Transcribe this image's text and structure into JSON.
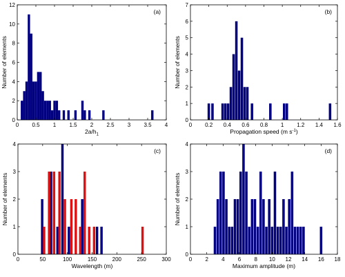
{
  "colors": {
    "bar_primary": "#000080",
    "bar_secondary": "#dd1111",
    "axis": "#000000"
  },
  "chart_data": [
    {
      "type": "bar",
      "panel_label": "(a)",
      "xlabel": "2a/h",
      "xlabel_sub": "1",
      "ylabel": "Number of elements",
      "xlim": [
        0,
        4
      ],
      "ylim": [
        0,
        12
      ],
      "xticks": [
        0,
        0.5,
        1,
        1.5,
        2,
        2.5,
        3,
        3.5,
        4
      ],
      "xtick_labels": [
        "0",
        "0.5",
        "1",
        "1.5",
        "2",
        "2.5",
        "3",
        "3.5",
        "4"
      ],
      "yticks": [
        0,
        2,
        4,
        6,
        8,
        10,
        12
      ],
      "ytick_labels": [
        "0",
        "2",
        "4",
        "6",
        "8",
        "10",
        "12"
      ],
      "bin_width": 0.0625,
      "series": [
        {
          "color": "#000080",
          "x": [
            0.125,
            0.1875,
            0.25,
            0.3125,
            0.375,
            0.4375,
            0.5,
            0.5625,
            0.625,
            0.6875,
            0.75,
            0.8125,
            0.875,
            0.9375,
            1.0,
            1.0625,
            1.125,
            1.25,
            1.375,
            1.5625,
            1.75,
            1.8125,
            1.9375,
            2.3125,
            3.625
          ],
          "values": [
            2,
            3,
            4,
            11,
            9,
            4,
            4,
            5,
            5,
            3,
            2,
            2,
            2,
            1,
            2,
            2,
            1,
            1,
            1,
            1,
            2,
            1,
            1,
            1,
            1
          ]
        }
      ]
    },
    {
      "type": "bar",
      "panel_label": "(b)",
      "xlabel": "Propagation speed (m s",
      "xlabel_sup": "-1",
      "xlabel_close": ")",
      "ylabel": "Number of elements",
      "xlim": [
        0,
        1.6
      ],
      "ylim": [
        0,
        7
      ],
      "xticks": [
        0,
        0.2,
        0.4,
        0.6,
        0.8,
        1,
        1.2,
        1.4,
        1.6
      ],
      "xtick_labels": [
        "0",
        "0.2",
        "0.4",
        "0.6",
        "0.8",
        "1",
        "1.2",
        "1.4",
        "1.6"
      ],
      "yticks": [
        0,
        1,
        2,
        3,
        4,
        5,
        6,
        7
      ],
      "ytick_labels": [
        "0",
        "1",
        "2",
        "3",
        "4",
        "5",
        "6",
        "7"
      ],
      "bin_width": 0.0267,
      "series": [
        {
          "color": "#000080",
          "x": [
            0.2,
            0.24,
            0.35,
            0.38,
            0.41,
            0.44,
            0.47,
            0.5,
            0.53,
            0.56,
            0.59,
            0.62,
            0.67,
            0.87,
            1.02,
            1.05,
            1.52
          ],
          "values": [
            1,
            1,
            1,
            1,
            1,
            2,
            4,
            6,
            3,
            5,
            2,
            2,
            1,
            1,
            1,
            1,
            1
          ]
        }
      ]
    },
    {
      "type": "bar",
      "panel_label": "(c)",
      "xlabel": "Wavelength (m)",
      "ylabel": "Number of elements",
      "xlim": [
        0,
        300
      ],
      "ylim": [
        0,
        4
      ],
      "xticks": [
        0,
        50,
        100,
        150,
        200,
        250,
        300
      ],
      "xtick_labels": [
        "0",
        "50",
        "100",
        "150",
        "200",
        "250",
        "300"
      ],
      "yticks": [
        0,
        1,
        2,
        3,
        4
      ],
      "ytick_labels": [
        "0",
        "1",
        "2",
        "3",
        "4"
      ],
      "bin_width": 4.8,
      "series": [
        {
          "color": "#000080",
          "x": [
            49,
            67,
            80,
            90,
            103,
            130,
            160,
            169
          ],
          "values": [
            2,
            3,
            1,
            4,
            1,
            2,
            1,
            1
          ]
        },
        {
          "color": "#dd1111",
          "x": [
            53,
            63,
            73,
            84,
            95,
            108,
            117,
            126,
            135,
            144,
            154,
            252
          ],
          "values": [
            1,
            3,
            3,
            3,
            2,
            2,
            2,
            1,
            3,
            1,
            1,
            1
          ]
        }
      ]
    },
    {
      "type": "bar",
      "panel_label": "(d)",
      "xlabel": "Maximum amplitude (m)",
      "ylabel": "Number of elements",
      "xlim": [
        0,
        18
      ],
      "ylim": [
        0,
        4
      ],
      "xticks": [
        0,
        2,
        4,
        6,
        8,
        10,
        12,
        14,
        16,
        18
      ],
      "xtick_labels": [
        "0",
        "2",
        "4",
        "6",
        "8",
        "10",
        "12",
        "14",
        "16",
        "18"
      ],
      "yticks": [
        0,
        1,
        2,
        3,
        4
      ],
      "ytick_labels": [
        "0",
        "1",
        "2",
        "3",
        "4"
      ],
      "bin_width": 0.3,
      "series": [
        {
          "color": "#000080",
          "x": [
            3,
            3.35,
            3.7,
            4.05,
            4.4,
            4.75,
            5.1,
            5.45,
            5.8,
            6.15,
            6.5,
            6.85,
            7.2,
            7.55,
            7.9,
            8.25,
            8.6,
            8.95,
            9.3,
            9.65,
            10.0,
            10.35,
            10.7,
            11.05,
            11.4,
            11.75,
            12.1,
            12.45,
            12.8,
            13.15,
            13.5,
            13.85,
            16.0
          ],
          "values": [
            1,
            2,
            3,
            3,
            2,
            1,
            1,
            2,
            2,
            3,
            4,
            3,
            1,
            2,
            2,
            1,
            3,
            2,
            1,
            2,
            1,
            3,
            1,
            1,
            2,
            1,
            2,
            3,
            1,
            1,
            1,
            1,
            1
          ]
        }
      ]
    }
  ]
}
